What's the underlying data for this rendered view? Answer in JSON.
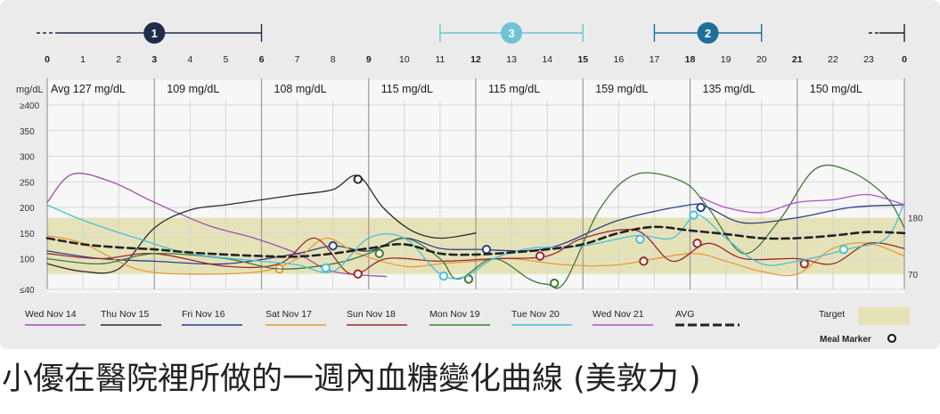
{
  "caption": "小優在醫院裡所做的一週內血糖變化曲線 (美敦力 )",
  "colors": {
    "background": "#ebebeb",
    "plot_bg": "#f7f7f7",
    "target_band": "#e6e2b8",
    "segment_1": "#1f2d4a",
    "segment_2": "#1f6e9b",
    "segment_3": "#6fc2d6",
    "avg": "#222222"
  },
  "chart_data": {
    "type": "line",
    "title": "",
    "xlabel": "",
    "ylabel": "mg/dL",
    "xlim": [
      0,
      24
    ],
    "ylim": [
      40,
      400
    ],
    "x_ticks": [
      {
        "value": 0,
        "label": "0",
        "bold": true
      },
      {
        "value": 1,
        "label": "1",
        "bold": false
      },
      {
        "value": 2,
        "label": "2",
        "bold": false
      },
      {
        "value": 3,
        "label": "3",
        "bold": true
      },
      {
        "value": 4,
        "label": "4",
        "bold": false
      },
      {
        "value": 5,
        "label": "5",
        "bold": false
      },
      {
        "value": 6,
        "label": "6",
        "bold": true
      },
      {
        "value": 7,
        "label": "7",
        "bold": false
      },
      {
        "value": 8,
        "label": "8",
        "bold": false
      },
      {
        "value": 9,
        "label": "9",
        "bold": true
      },
      {
        "value": 10,
        "label": "10",
        "bold": false
      },
      {
        "value": 11,
        "label": "11",
        "bold": false
      },
      {
        "value": 12,
        "label": "12",
        "bold": true
      },
      {
        "value": 13,
        "label": "13",
        "bold": false
      },
      {
        "value": 14,
        "label": "14",
        "bold": false
      },
      {
        "value": 15,
        "label": "15",
        "bold": true
      },
      {
        "value": 16,
        "label": "16",
        "bold": false
      },
      {
        "value": 17,
        "label": "17",
        "bold": false
      },
      {
        "value": 18,
        "label": "18",
        "bold": true
      },
      {
        "value": 19,
        "label": "19",
        "bold": false
      },
      {
        "value": 20,
        "label": "20",
        "bold": false
      },
      {
        "value": 21,
        "label": "21",
        "bold": true
      },
      {
        "value": 22,
        "label": "22",
        "bold": false
      },
      {
        "value": 23,
        "label": "23",
        "bold": false
      },
      {
        "value": 24,
        "label": "0",
        "bold": true
      }
    ],
    "y_ticks": [
      {
        "value": 400,
        "label": "≥400"
      },
      {
        "value": 350,
        "label": "350"
      },
      {
        "value": 300,
        "label": "300"
      },
      {
        "value": 250,
        "label": "250"
      },
      {
        "value": 200,
        "label": "200"
      },
      {
        "value": 150,
        "label": "150"
      },
      {
        "value": 100,
        "label": "100"
      },
      {
        "value": 40,
        "label": "≤40"
      }
    ],
    "target_range": [
      70,
      180
    ],
    "target_labels": {
      "low": "70",
      "high": "180"
    },
    "period_segments": [
      {
        "label": "1",
        "from": 0,
        "to": 6,
        "color": "#1f2d4a",
        "filled": true,
        "lead_dashed": true
      },
      {
        "label": "3",
        "from": 11,
        "to": 15,
        "color": "#6fc2d6",
        "filled": true,
        "lead_dashed": false
      },
      {
        "label": "2",
        "from": 17,
        "to": 20,
        "color": "#1f6e9b",
        "filled": true,
        "lead_dashed": false
      },
      {
        "label": "",
        "from": 23,
        "to": 24,
        "color": "#222222",
        "filled": false,
        "lead_dashed": true
      }
    ],
    "averages": [
      {
        "from": 0,
        "to": 3,
        "label": "Avg 127 mg/dL"
      },
      {
        "from": 3,
        "to": 6,
        "label": "109 mg/dL"
      },
      {
        "from": 6,
        "to": 9,
        "label": "108 mg/dL"
      },
      {
        "from": 9,
        "to": 12,
        "label": "115 mg/dL"
      },
      {
        "from": 12,
        "to": 15,
        "label": "115 mg/dL"
      },
      {
        "from": 15,
        "to": 18,
        "label": "159 mg/dL"
      },
      {
        "from": 18,
        "to": 21,
        "label": "135 mg/dL"
      },
      {
        "from": 21,
        "to": 24,
        "label": "150 mg/dL"
      }
    ],
    "series": [
      {
        "name": "Wed Nov 14",
        "color": "#9b4fb0",
        "x": [
          0,
          0.7,
          1.8,
          3,
          4.5,
          5.8,
          7,
          8,
          9.5
        ],
        "y": [
          210,
          265,
          250,
          210,
          165,
          140,
          110,
          75,
          65
        ],
        "markers": []
      },
      {
        "name": "Thu Nov 15",
        "color": "#2a2a2a",
        "x": [
          0,
          1,
          2,
          3,
          4,
          5,
          6,
          7,
          8,
          8.7,
          9.4,
          10.2,
          11,
          12
        ],
        "y": [
          90,
          75,
          80,
          160,
          195,
          205,
          215,
          225,
          235,
          262,
          200,
          155,
          140,
          150
        ],
        "markers": [
          {
            "x": 8.7,
            "y": 255
          }
        ]
      },
      {
        "name": "Fri Nov 16",
        "color": "#2b3f8a",
        "x": [
          0,
          1.5,
          3,
          5,
          7,
          8,
          9,
          10,
          11,
          12,
          14,
          16,
          18,
          18.5,
          19.5,
          21,
          22.5,
          24
        ],
        "y": [
          115,
          100,
          95,
          90,
          110,
          125,
          115,
          140,
          120,
          118,
          120,
          175,
          205,
          200,
          170,
          180,
          200,
          205
        ],
        "markers": [
          {
            "x": 8,
            "y": 125
          },
          {
            "x": 12.3,
            "y": 118
          },
          {
            "x": 18.3,
            "y": 200
          }
        ]
      },
      {
        "name": "Sat Nov 17",
        "color": "#e59a3b",
        "x": [
          0,
          1,
          2.5,
          4,
          6,
          7,
          7.8,
          8.7,
          10,
          11,
          12,
          13,
          14.5,
          16,
          18,
          19,
          20,
          21,
          22,
          23,
          24
        ],
        "y": [
          145,
          130,
          80,
          70,
          75,
          100,
          140,
          110,
          85,
          90,
          95,
          100,
          88,
          88,
          110,
          95,
          75,
          70,
          120,
          130,
          105
        ],
        "markers": [
          {
            "x": 6.5,
            "y": 80
          }
        ]
      },
      {
        "name": "Sun Nov 18",
        "color": "#9b2a28",
        "x": [
          0,
          1.5,
          3,
          5,
          6.5,
          7.5,
          8.5,
          9.5,
          11,
          12.5,
          14,
          15,
          16.5,
          17.5,
          18.5,
          19.5,
          21,
          22,
          23,
          24
        ],
        "y": [
          110,
          100,
          110,
          85,
          90,
          140,
          70,
          100,
          95,
          100,
          105,
          140,
          155,
          95,
          130,
          100,
          100,
          90,
          130,
          120
        ],
        "markers": [
          {
            "x": 8.7,
            "y": 70
          },
          {
            "x": 13.8,
            "y": 105
          },
          {
            "x": 16.7,
            "y": 95
          },
          {
            "x": 18.2,
            "y": 130
          },
          {
            "x": 21.2,
            "y": 90
          }
        ]
      },
      {
        "name": "Mon Nov 19",
        "color": "#3f7a32",
        "x": [
          0,
          1.5,
          3,
          5,
          6.5,
          8,
          9,
          10,
          11,
          11.5,
          12.5,
          13.5,
          14,
          14.5,
          15.5,
          16.5,
          17.8,
          18.5,
          19.5,
          20.5,
          21.5,
          22.5,
          23.5,
          24
        ],
        "y": [
          100,
          90,
          110,
          100,
          80,
          90,
          110,
          140,
          100,
          60,
          100,
          60,
          50,
          55,
          200,
          265,
          250,
          200,
          110,
          175,
          275,
          270,
          220,
          160
        ],
        "markers": [
          {
            "x": 9.3,
            "y": 110
          },
          {
            "x": 11.8,
            "y": 60
          },
          {
            "x": 14.2,
            "y": 52
          }
        ]
      },
      {
        "name": "Tue Nov 20",
        "color": "#4bbfda",
        "x": [
          0,
          1,
          2.5,
          4,
          6,
          7,
          8,
          9,
          10,
          11,
          11.7,
          12.5,
          13.5,
          15,
          16.5,
          17.5,
          18.2,
          19,
          20,
          21,
          22.5,
          23.5,
          24
        ],
        "y": [
          205,
          175,
          140,
          110,
          95,
          88,
          75,
          140,
          140,
          70,
          65,
          100,
          120,
          125,
          145,
          140,
          185,
          140,
          90,
          95,
          120,
          140,
          210
        ],
        "markers": [
          {
            "x": 7.8,
            "y": 82
          },
          {
            "x": 11.1,
            "y": 66
          },
          {
            "x": 16.6,
            "y": 138
          },
          {
            "x": 18.1,
            "y": 185
          },
          {
            "x": 22.3,
            "y": 118
          }
        ]
      },
      {
        "name": "Wed Nov 21",
        "color": "#b14fc8",
        "x": [
          18.3,
          19,
          20,
          21,
          22,
          23,
          24
        ],
        "y": [
          220,
          200,
          190,
          210,
          215,
          225,
          205
        ],
        "markers": []
      },
      {
        "name": "AVG",
        "color": "#222222",
        "dashed": true,
        "x": [
          0,
          1,
          2,
          3,
          4,
          5,
          6,
          7,
          8,
          9,
          10,
          11,
          12,
          13,
          14,
          15,
          16,
          17,
          18,
          19,
          20,
          21,
          22,
          23,
          24
        ],
        "y": [
          140,
          128,
          122,
          118,
          112,
          108,
          105,
          104,
          110,
          120,
          128,
          110,
          108,
          112,
          118,
          128,
          150,
          162,
          155,
          148,
          140,
          140,
          145,
          152,
          150
        ],
        "markers": []
      }
    ],
    "legend": {
      "placement": "bottom",
      "target_label": "Target",
      "meal_marker_label": "Meal Marker"
    }
  }
}
